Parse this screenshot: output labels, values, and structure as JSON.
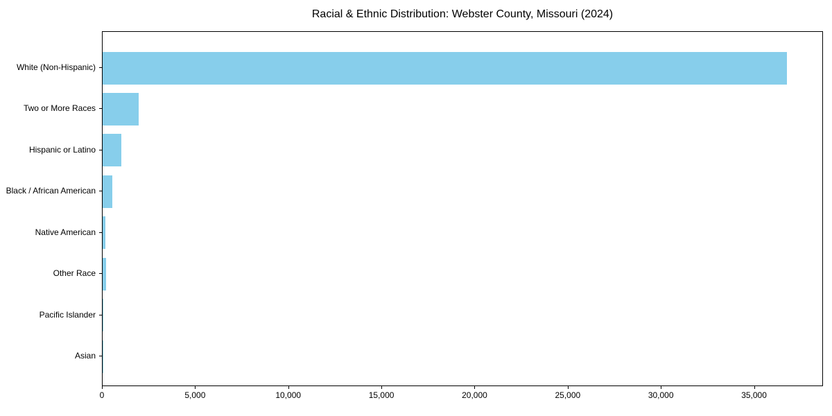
{
  "chart_data": {
    "type": "bar",
    "orientation": "horizontal",
    "title": "Racial & Ethnic Distribution: Webster County, Missouri (2024)",
    "categories": [
      "White (Non-Hispanic)",
      "Two or More Races",
      "Hispanic or Latino",
      "Black / African American",
      "Native American",
      "Other Race",
      "Pacific Islander",
      "Asian"
    ],
    "values": [
      36800,
      1930,
      1000,
      510,
      165,
      200,
      35,
      20
    ],
    "xlabel": "",
    "ylabel": "",
    "xlim": [
      0,
      38700
    ],
    "xticks": [
      0,
      5000,
      10000,
      15000,
      20000,
      25000,
      30000,
      35000
    ],
    "xtick_labels": [
      "0",
      "5,000",
      "10,000",
      "15,000",
      "20,000",
      "25,000",
      "30,000",
      "35,000"
    ],
    "bar_color": "#87CEEB",
    "text_color": "#000000",
    "spine_color": "#000000",
    "grid": false,
    "legend": "none"
  }
}
